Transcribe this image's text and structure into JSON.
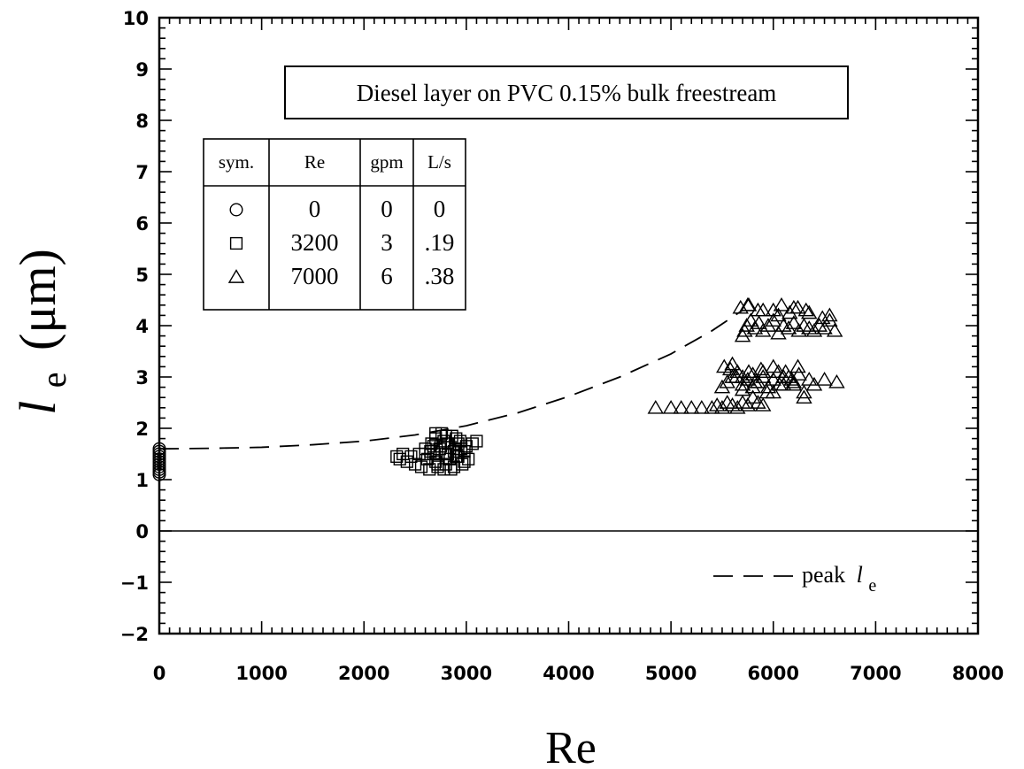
{
  "chart_data": {
    "type": "scatter",
    "title": "Diesel layer on PVC 0.15% bulk freestream",
    "xlabel": "Re",
    "ylabel": {
      "base": "l",
      "sub": "e",
      "unit": "(μm)"
    },
    "xlim": [
      0,
      8000
    ],
    "ylim": [
      -2,
      10
    ],
    "x_ticks": [
      "0",
      "1000",
      "2000",
      "3000",
      "4000",
      "5000",
      "6000",
      "7000",
      "8000"
    ],
    "y_ticks": [
      "−2",
      "−1",
      "0",
      "1",
      "2",
      "3",
      "4",
      "5",
      "6",
      "7",
      "8",
      "9",
      "10"
    ],
    "zero_line": true,
    "grid": false,
    "table": {
      "headers": [
        "sym.",
        "Re",
        "gpm",
        "L/s"
      ],
      "rows": [
        {
          "symbol": "circle",
          "re": "0",
          "gpm": "0",
          "ls": "0"
        },
        {
          "symbol": "square",
          "re": "3200",
          "gpm": "3",
          "ls": ".19"
        },
        {
          "symbol": "triangle",
          "re": "7000",
          "gpm": "6",
          "ls": ".38"
        }
      ]
    },
    "legend": {
      "placement": "bottom-right",
      "text": "peak",
      "var": "l",
      "sub": "e"
    },
    "peak_curve": {
      "style": "dashed",
      "x": [
        0,
        500,
        1000,
        1500,
        2000,
        2500,
        3000,
        3500,
        4000,
        4500,
        5000,
        5400,
        5700
      ],
      "y": [
        1.6,
        1.61,
        1.63,
        1.68,
        1.75,
        1.87,
        2.05,
        2.3,
        2.62,
        3.0,
        3.45,
        3.9,
        4.3
      ]
    },
    "series": [
      {
        "name": "0",
        "marker": "circle",
        "x": [
          0,
          0,
          0,
          0,
          0,
          0,
          0,
          0,
          0,
          0,
          0
        ],
        "y": [
          1.1,
          1.2,
          1.25,
          1.3,
          1.35,
          1.4,
          1.45,
          1.5,
          1.55,
          1.6,
          1.15
        ]
      },
      {
        "name": "3200",
        "marker": "square",
        "x": [
          2320,
          2350,
          2380,
          2420,
          2460,
          2500,
          2540,
          2560,
          2600,
          2620,
          2640,
          2660,
          2680,
          2700,
          2720,
          2740,
          2760,
          2780,
          2800,
          2820,
          2840,
          2860,
          2880,
          2900,
          2920,
          2940,
          2960,
          2980,
          3000,
          3020,
          3060,
          3100,
          2650,
          2700,
          2750,
          2800,
          2850,
          2900,
          2950,
          2600,
          2700,
          2800,
          2900,
          2680,
          2780,
          2880,
          2980,
          2720,
          2820,
          2920
        ],
        "y": [
          1.45,
          1.4,
          1.5,
          1.35,
          1.45,
          1.3,
          1.5,
          1.25,
          1.6,
          1.4,
          1.2,
          1.7,
          1.5,
          1.8,
          1.3,
          1.6,
          1.9,
          1.2,
          1.5,
          1.7,
          1.4,
          1.85,
          1.25,
          1.6,
          1.45,
          1.75,
          1.3,
          1.55,
          1.65,
          1.4,
          1.7,
          1.75,
          1.55,
          1.35,
          1.65,
          1.85,
          1.2,
          1.45,
          1.6,
          1.5,
          1.9,
          1.3,
          1.8,
          1.65,
          1.75,
          1.55,
          1.35,
          1.25,
          1.5,
          1.7
        ]
      },
      {
        "name": "7000",
        "marker": "triangle",
        "x": [
          4850,
          5000,
          5100,
          5200,
          5300,
          5400,
          5450,
          5500,
          5550,
          5600,
          5650,
          5700,
          5750,
          5800,
          5850,
          5900,
          5500,
          5550,
          5600,
          5650,
          5700,
          5750,
          5800,
          5850,
          5900,
          5950,
          6000,
          6050,
          6100,
          6150,
          6200,
          6250,
          6300,
          6350,
          6400,
          6500,
          6620,
          5520,
          5580,
          5640,
          5700,
          5760,
          5820,
          5880,
          5940,
          6000,
          6060,
          6120,
          6180,
          6240,
          6300,
          5600,
          5700,
          5800,
          5900,
          6000,
          6100,
          6200,
          5700,
          5720,
          5740,
          5780,
          5820,
          5860,
          5900,
          5950,
          6000,
          6050,
          6100,
          6150,
          6200,
          6250,
          6300,
          6350,
          6400,
          6450,
          6500,
          6550,
          6600,
          6000,
          6080,
          6160,
          6240,
          6320,
          5680,
          5760,
          5900,
          6050,
          6200,
          6350,
          6480,
          6550,
          5750,
          5850
        ],
        "y": [
          2.4,
          2.4,
          2.4,
          2.4,
          2.4,
          2.4,
          2.45,
          2.4,
          2.5,
          2.45,
          2.4,
          2.5,
          2.45,
          2.6,
          2.5,
          2.45,
          2.8,
          2.9,
          3.0,
          3.1,
          2.85,
          2.95,
          3.05,
          2.9,
          3.0,
          2.8,
          2.95,
          3.1,
          2.85,
          3.0,
          2.9,
          3.05,
          2.7,
          2.95,
          2.85,
          2.95,
          2.9,
          3.2,
          3.15,
          3.0,
          2.75,
          3.1,
          2.9,
          3.15,
          2.7,
          3.2,
          2.85,
          3.1,
          2.95,
          3.2,
          2.6,
          3.25,
          3.0,
          2.8,
          3.1,
          2.7,
          3.0,
          2.85,
          3.8,
          3.9,
          4.0,
          4.1,
          3.95,
          4.05,
          3.9,
          4.0,
          4.1,
          3.85,
          4.0,
          3.95,
          4.05,
          3.9,
          4.0,
          3.95,
          3.9,
          4.0,
          3.95,
          4.1,
          3.9,
          4.3,
          4.4,
          4.25,
          4.35,
          4.3,
          4.35,
          4.4,
          4.3,
          4.2,
          4.35,
          4.25,
          4.15,
          4.2,
          4.4,
          4.3
        ]
      }
    ]
  }
}
